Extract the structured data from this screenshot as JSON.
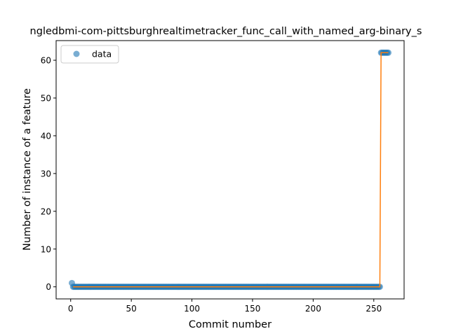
{
  "chart_data": {
    "type": "scatter",
    "title": "ngledbmi-com-pittsburghrealtimetracker_func_call_with_named_arg-binary_s",
    "xlabel": "Commit number",
    "ylabel": "Number of instance of a feature",
    "xlim": [
      -12,
      275
    ],
    "ylim": [
      -3.2,
      65.2
    ],
    "xticks": [
      0,
      50,
      100,
      150,
      200,
      250
    ],
    "yticks": [
      0,
      10,
      20,
      30,
      40,
      50,
      60
    ],
    "grid": false,
    "legend": {
      "placement": "top-left",
      "entries": [
        "data"
      ]
    },
    "colors": {
      "points": "#1f77b4",
      "fit_line": "#ff7f0e"
    },
    "series": [
      {
        "name": "data",
        "kind": "points",
        "x_start": 1,
        "x_end": 262,
        "values_by_range": [
          {
            "from": 1,
            "to": 1,
            "y": 1
          },
          {
            "from": 2,
            "to": 255,
            "y": 0
          },
          {
            "from": 256,
            "to": 262,
            "y": 62
          }
        ]
      },
      {
        "kind": "line",
        "points": [
          [
            2,
            0
          ],
          [
            254,
            0
          ],
          [
            255,
            0
          ],
          [
            256,
            62
          ],
          [
            262,
            62
          ]
        ]
      }
    ]
  }
}
